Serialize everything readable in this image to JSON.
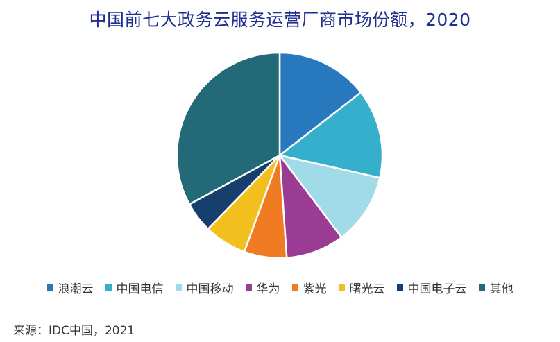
{
  "chart_data": {
    "type": "pie",
    "title": "中国前七大政务云服务运营厂商市场份额，2020",
    "source": "来源：IDC中国，2021",
    "legend_position": "bottom",
    "slices": [
      {
        "name": "浪潮云",
        "value": 14.5,
        "color": "#2878be"
      },
      {
        "name": "中国电信",
        "value": 14.0,
        "color": "#35afcb"
      },
      {
        "name": "中国移动",
        "value": 11.2,
        "color": "#a2dbe8"
      },
      {
        "name": "华为",
        "value": 9.2,
        "color": "#9a3b94"
      },
      {
        "name": "紫光",
        "value": 6.7,
        "color": "#f07b22"
      },
      {
        "name": "曙光云",
        "value": 6.7,
        "color": "#f2c01e"
      },
      {
        "name": "中国电子云",
        "value": 4.8,
        "color": "#163f6e"
      },
      {
        "name": "其他",
        "value": 32.9,
        "color": "#226a78"
      }
    ]
  }
}
